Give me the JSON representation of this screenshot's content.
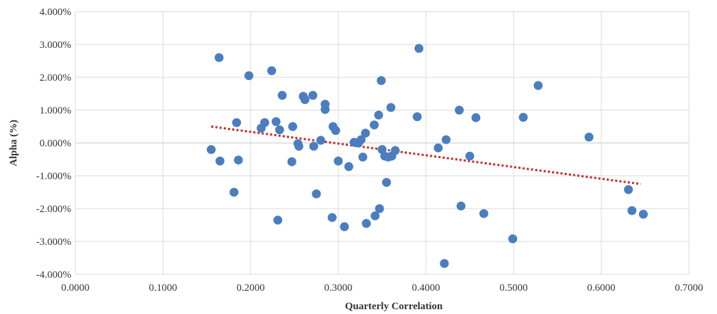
{
  "chart_data": {
    "type": "scatter",
    "title": "",
    "xlabel": "Quarterly Correlation",
    "ylabel": "Alpha (%)",
    "xlim": [
      0.0,
      0.7
    ],
    "ylim": [
      -4.0,
      4.0
    ],
    "x_ticks": [
      0.0,
      0.1,
      0.2,
      0.3,
      0.4,
      0.5,
      0.6,
      0.7
    ],
    "x_tick_labels": [
      "0.0000",
      "0.1000",
      "0.2000",
      "0.3000",
      "0.4000",
      "0.5000",
      "0.6000",
      "0.7000"
    ],
    "y_ticks": [
      4,
      3,
      2,
      1,
      0,
      -1,
      -2,
      -3,
      -4
    ],
    "y_tick_labels": [
      "4.000%",
      "3.000%",
      "2.000%",
      "1.000%",
      "0.000%",
      "-1.000%",
      "-2.000%",
      "-3.000%",
      "-4.000%"
    ],
    "grid": true,
    "legend": "none",
    "colors": {
      "points": "#4a7ebf",
      "trendline": "#cc2a2a",
      "grid": "#d9d9d9",
      "text": "#333333"
    },
    "trendline": {
      "style": "dotted",
      "x": [
        0.155,
        0.645
      ],
      "y": [
        0.5,
        -1.25
      ]
    },
    "series": [
      {
        "points": [
          [
            0.155,
            -0.2
          ],
          [
            0.164,
            2.6
          ],
          [
            0.165,
            -0.55
          ],
          [
            0.181,
            -1.5
          ],
          [
            0.184,
            0.62
          ],
          [
            0.186,
            -0.52
          ],
          [
            0.198,
            2.05
          ],
          [
            0.212,
            0.45
          ],
          [
            0.216,
            0.62
          ],
          [
            0.224,
            2.2
          ],
          [
            0.229,
            0.65
          ],
          [
            0.231,
            -2.35
          ],
          [
            0.233,
            0.4
          ],
          [
            0.236,
            1.45
          ],
          [
            0.247,
            -0.57
          ],
          [
            0.248,
            0.5
          ],
          [
            0.254,
            -0.02
          ],
          [
            0.255,
            -0.1
          ],
          [
            0.26,
            1.42
          ],
          [
            0.262,
            1.32
          ],
          [
            0.271,
            1.45
          ],
          [
            0.272,
            -0.1
          ],
          [
            0.275,
            -1.55
          ],
          [
            0.28,
            0.08
          ],
          [
            0.285,
            1.18
          ],
          [
            0.285,
            1.02
          ],
          [
            0.293,
            -2.27
          ],
          [
            0.294,
            0.5
          ],
          [
            0.297,
            0.38
          ],
          [
            0.3,
            -0.55
          ],
          [
            0.307,
            -2.55
          ],
          [
            0.312,
            -0.72
          ],
          [
            0.318,
            0.02
          ],
          [
            0.323,
            0.0
          ],
          [
            0.326,
            0.1
          ],
          [
            0.328,
            -0.43
          ],
          [
            0.331,
            0.3
          ],
          [
            0.332,
            -2.45
          ],
          [
            0.341,
            0.55
          ],
          [
            0.342,
            -2.22
          ],
          [
            0.346,
            0.85
          ],
          [
            0.347,
            -2.0
          ],
          [
            0.349,
            1.9
          ],
          [
            0.35,
            -0.2
          ],
          [
            0.353,
            -0.4
          ],
          [
            0.355,
            -1.2
          ],
          [
            0.357,
            -0.43
          ],
          [
            0.36,
            1.08
          ],
          [
            0.361,
            -0.4
          ],
          [
            0.365,
            -0.23
          ],
          [
            0.39,
            0.8
          ],
          [
            0.392,
            2.88
          ],
          [
            0.414,
            -0.15
          ],
          [
            0.421,
            -3.67
          ],
          [
            0.423,
            0.1
          ],
          [
            0.438,
            1.0
          ],
          [
            0.44,
            -1.92
          ],
          [
            0.45,
            -0.4
          ],
          [
            0.457,
            0.77
          ],
          [
            0.466,
            -2.15
          ],
          [
            0.499,
            -2.92
          ],
          [
            0.511,
            0.78
          ],
          [
            0.528,
            1.75
          ],
          [
            0.586,
            0.18
          ],
          [
            0.631,
            -1.42
          ],
          [
            0.635,
            -2.06
          ],
          [
            0.648,
            -2.17
          ]
        ]
      }
    ]
  }
}
